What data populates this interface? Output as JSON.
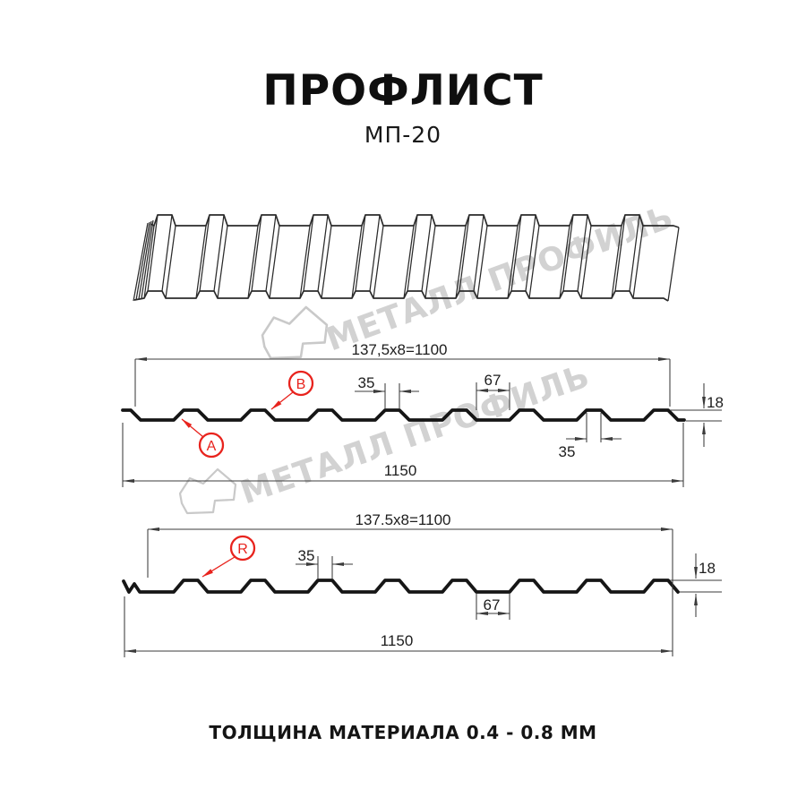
{
  "page": {
    "title": "ПРОФЛИСТ",
    "subtitle": "МП-20",
    "footer_note": "ТОЛЩИНА МАТЕРИАЛА 0.4 - 0.8 ММ"
  },
  "watermark": {
    "brand": "МЕТАЛЛ ПРОФИЛЬ"
  },
  "colors": {
    "profile_line": "#161616",
    "dim_line": "#3b3b3b",
    "accent_red": "#e8231d",
    "watermark_gray": "#d2d2d2"
  },
  "section_top": {
    "pitch_label": "137,5x8=1100",
    "crest_width_top": "35",
    "valley_width": "67",
    "profile_height": "18",
    "crest_width_bottom": "35",
    "overall_width": "1150",
    "callout_a": "A",
    "callout_b": "B"
  },
  "section_bottom": {
    "pitch_label": "137.5x8=1100",
    "crest_width": "35",
    "profile_height": "18",
    "valley_width": "67",
    "overall_width": "1150",
    "callout_r": "R"
  }
}
